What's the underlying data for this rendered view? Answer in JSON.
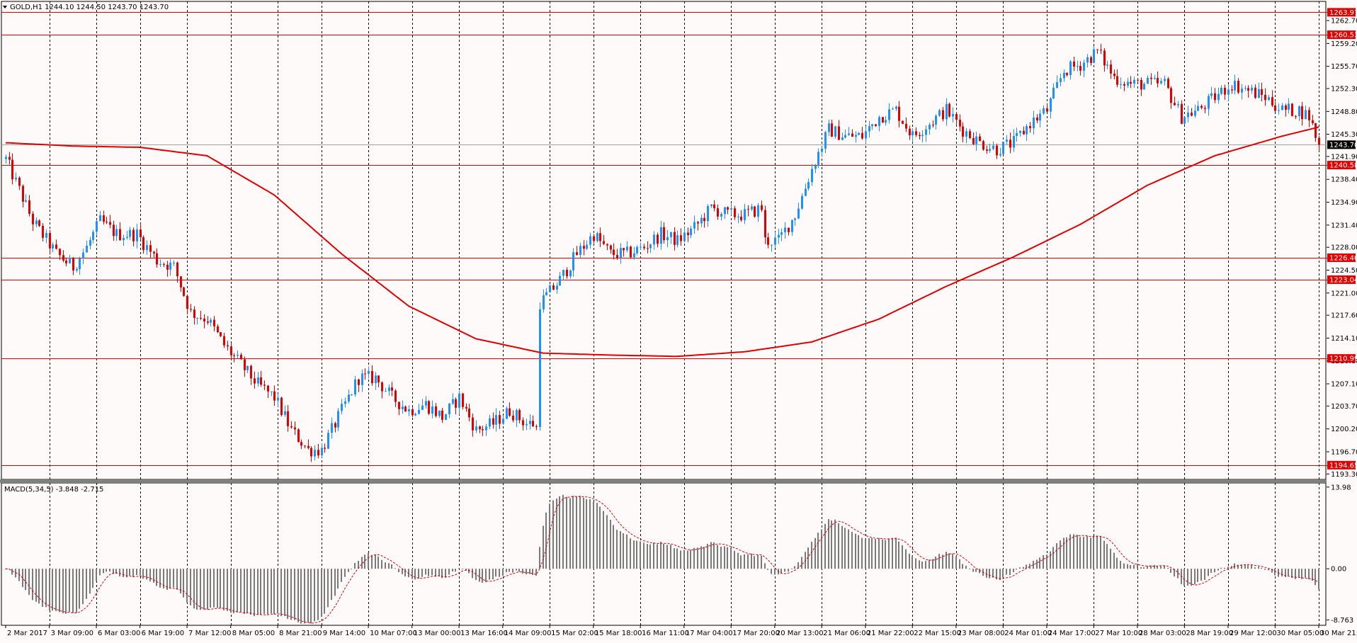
{
  "main_header": "GOLD,H1  1244.10 1244.50 1243.70 1243.70",
  "macd_header": "MACD(5,34,5) -3.848 -2.715",
  "colors": {
    "background": "#fffafa",
    "grid": "#000000",
    "bull": "#1e90ff",
    "bear": "#e00000",
    "ma": "#e00000",
    "level_line": "#e00000",
    "macd_hist": "#7a7a7a",
    "macd_signal": "#e00000",
    "price_tag_bg": "#000000",
    "level_tag_bg": "#e00000"
  },
  "chart_data": [
    {
      "type": "line",
      "name": "candlestick",
      "x_ticks": [
        "2 Mar 2017",
        "3 Mar 09:00",
        "6 Mar 03:00",
        "6 Mar 19:00",
        "7 Mar 12:00",
        "8 Mar 05:00",
        "8 Mar 21:00",
        "9 Mar 14:00",
        "10 Mar 07:00",
        "13 Mar 00:00",
        "13 Mar 16:00",
        "14 Mar 09:00",
        "15 Mar 02:00",
        "15 Mar 18:00",
        "16 Mar 11:00",
        "17 Mar 04:00",
        "17 Mar 20:00",
        "20 Mar 13:00",
        "21 Mar 06:00",
        "21 Mar 22:00",
        "22 Mar 15:00",
        "23 Mar 08:00",
        "24 Mar 01:00",
        "24 Mar 17:00",
        "27 Mar 10:00",
        "28 Mar 03:00",
        "28 Mar 19:00",
        "29 Mar 12:00",
        "30 Mar 05:00",
        "30 Mar 21:00"
      ],
      "y_ticks": [
        "1262.70",
        "1259.20",
        "1255.70",
        "1252.30",
        "1248.80",
        "1245.30",
        "1241.90",
        "1238.40",
        "1234.90",
        "1231.40",
        "1228.00",
        "1224.50",
        "1221.00",
        "1217.60",
        "1214.10",
        "1210.60",
        "1207.10",
        "1203.70",
        "1200.20",
        "1196.70",
        "1193.30"
      ],
      "ylim": [
        1192.9,
        1265.2
      ],
      "current_price": "1243.70",
      "horizontal_levels": [
        "1263.97",
        "1260.53",
        "1240.58",
        "1226.40",
        "1223.04",
        "1210.99",
        "1194.65"
      ],
      "close_anchors": [
        [
          0,
          1241.5
        ],
        [
          8,
          1232
        ],
        [
          15,
          1227
        ],
        [
          20,
          1225
        ],
        [
          24,
          1228
        ],
        [
          28,
          1232
        ],
        [
          33,
          1230
        ],
        [
          39,
          1230
        ],
        [
          45,
          1226
        ],
        [
          50,
          1225
        ],
        [
          55,
          1218
        ],
        [
          60,
          1217
        ],
        [
          65,
          1213
        ],
        [
          70,
          1210
        ],
        [
          75,
          1207
        ],
        [
          80,
          1205
        ],
        [
          85,
          1200
        ],
        [
          90,
          1197
        ],
        [
          94,
          1197
        ],
        [
          100,
          1203
        ],
        [
          105,
          1208
        ],
        [
          110,
          1208
        ],
        [
          115,
          1205
        ],
        [
          120,
          1203
        ],
        [
          125,
          1204
        ],
        [
          130,
          1202
        ],
        [
          135,
          1205
        ],
        [
          140,
          1200
        ],
        [
          145,
          1201
        ],
        [
          150,
          1203
        ],
        [
          155,
          1201
        ],
        [
          158,
          1201
        ],
        [
          160,
          1220
        ],
        [
          165,
          1223
        ],
        [
          170,
          1227
        ],
        [
          175,
          1230
        ],
        [
          180,
          1227
        ],
        [
          185,
          1227
        ],
        [
          190,
          1228
        ],
        [
          195,
          1230
        ],
        [
          200,
          1229
        ],
        [
          205,
          1231
        ],
        [
          210,
          1234
        ],
        [
          215,
          1233
        ],
        [
          220,
          1233
        ],
        [
          225,
          1234
        ],
        [
          226,
          1229
        ],
        [
          230,
          1229
        ],
        [
          235,
          1233
        ],
        [
          240,
          1240
        ],
        [
          245,
          1246
        ],
        [
          250,
          1245
        ],
        [
          255,
          1245
        ],
        [
          260,
          1248
        ],
        [
          265,
          1249
        ],
        [
          270,
          1245
        ],
        [
          275,
          1247
        ],
        [
          280,
          1249
        ],
        [
          285,
          1246
        ],
        [
          290,
          1244
        ],
        [
          295,
          1243
        ],
        [
          300,
          1244
        ],
        [
          305,
          1247
        ],
        [
          310,
          1249
        ],
        [
          315,
          1255
        ],
        [
          320,
          1256
        ],
        [
          325,
          1258
        ],
        [
          330,
          1254
        ],
        [
          335,
          1253
        ],
        [
          340,
          1253
        ],
        [
          345,
          1253
        ],
        [
          350,
          1248
        ],
        [
          355,
          1249
        ],
        [
          360,
          1251
        ],
        [
          365,
          1253
        ],
        [
          370,
          1252
        ],
        [
          375,
          1251
        ],
        [
          380,
          1249
        ],
        [
          385,
          1249
        ],
        [
          388,
          1248
        ],
        [
          391,
          1243.7
        ]
      ],
      "ma_anchors": [
        [
          0,
          1244.0
        ],
        [
          20,
          1243.5
        ],
        [
          40,
          1243.3
        ],
        [
          60,
          1242.0
        ],
        [
          80,
          1236.0
        ],
        [
          100,
          1227.0
        ],
        [
          120,
          1219.0
        ],
        [
          140,
          1214.0
        ],
        [
          160,
          1211.8
        ],
        [
          180,
          1211.5
        ],
        [
          200,
          1211.3
        ],
        [
          220,
          1212.0
        ],
        [
          240,
          1213.5
        ],
        [
          260,
          1217.0
        ],
        [
          280,
          1222.0
        ],
        [
          300,
          1226.5
        ],
        [
          320,
          1231.5
        ],
        [
          340,
          1237.5
        ],
        [
          360,
          1242.0
        ],
        [
          380,
          1245.0
        ],
        [
          391,
          1246.4
        ]
      ]
    },
    {
      "type": "bar",
      "name": "MACD(5,34,5)",
      "y_ticks": [
        "13.98",
        "0.00",
        "-8.763"
      ],
      "ylim": [
        -9.2,
        14.2
      ],
      "macd": -3.848,
      "signal": -2.715
    }
  ]
}
